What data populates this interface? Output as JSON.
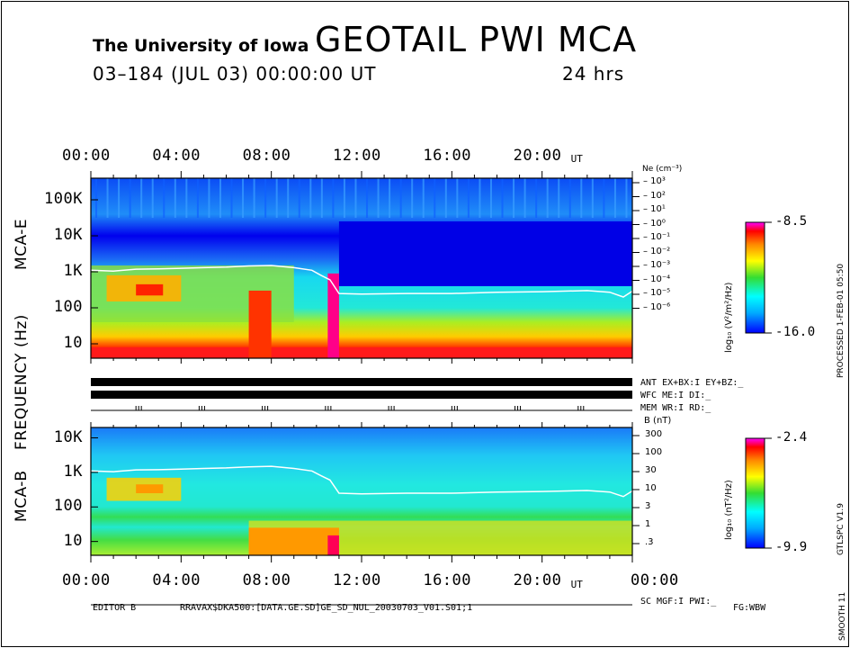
{
  "header": {
    "institution": "The University of Iowa",
    "title": "GEOTAIL  PWI  MCA",
    "date_line": "03–184 (JUL 03) 00:00:00 UT",
    "time_span": "24 hrs"
  },
  "side_labels": {
    "processed": "PROCESSED  1-FEB-01  05:50",
    "version": "GTLSPC  V1.9",
    "smooth": "SMOOTH 11",
    "frequency_axis": "FREQUENCY (Hz)",
    "mca_e": "MCA-E",
    "mca_b": "MCA-B"
  },
  "footer": {
    "editor": "EDITOR B",
    "file": "RRAVAX$DKA500:[DATA.GE.SD]GE_SD_NUL_20030703_V01.S01;1",
    "flag": "FG:WBW",
    "sc_status": "SC MGF:I   PWI:_"
  },
  "status_rows": {
    "ant": "ANT EX+BX:I  EY+BZ:_",
    "wfc": "WFC ME:I      DI:_",
    "mem": "MEM WR:I      RD:_"
  },
  "chart_data": [
    {
      "type": "heatmap",
      "panel": "MCA-E",
      "x_ticks": [
        "00:00",
        "04:00",
        "08:00",
        "12:00",
        "16:00",
        "20:00"
      ],
      "x_unit": "UT",
      "y_ticks": [
        "100K",
        "10K",
        "1K",
        "100",
        "10"
      ],
      "ylabel": "FREQUENCY (Hz)",
      "right_axis_label": "Ne (cm⁻³)",
      "right_ticks": [
        "10³",
        "10²",
        "10¹",
        "10⁰",
        "10⁻¹",
        "10⁻²",
        "10⁻³",
        "10⁻⁴",
        "10⁻⁵",
        "10⁻⁶"
      ],
      "colorbar": {
        "label": "log₁₀ (V²/m²/Hz)",
        "max": "-8.5",
        "min": "-16.0"
      },
      "overlay_line_hz": [
        [
          0,
          1100
        ],
        [
          1,
          1050
        ],
        [
          2,
          1180
        ],
        [
          3,
          1200
        ],
        [
          4,
          1250
        ],
        [
          5,
          1300
        ],
        [
          6,
          1350
        ],
        [
          7,
          1450
        ],
        [
          8,
          1500
        ],
        [
          9,
          1300
        ],
        [
          9.8,
          1100
        ],
        [
          10.2,
          800
        ],
        [
          10.6,
          600
        ],
        [
          11.0,
          250
        ],
        [
          12,
          240
        ],
        [
          14,
          250
        ],
        [
          16,
          250
        ],
        [
          18,
          270
        ],
        [
          20,
          280
        ],
        [
          22,
          300
        ],
        [
          23,
          270
        ],
        [
          23.6,
          200
        ],
        [
          24,
          290
        ]
      ]
    },
    {
      "type": "heatmap",
      "panel": "MCA-B",
      "x_ticks": [
        "00:00",
        "04:00",
        "08:00",
        "12:00",
        "16:00",
        "20:00",
        "00:00"
      ],
      "x_unit": "UT",
      "y_ticks": [
        "10K",
        "1K",
        "100",
        "10"
      ],
      "right_axis_label": "B (nT)",
      "right_ticks": [
        "300",
        "100",
        "30",
        "10",
        "3",
        "1",
        ".3"
      ],
      "colorbar": {
        "label": "log₁₀ (nT²/Hz)",
        "max": "-2.4",
        "min": "-9.9"
      },
      "overlay_line_hz": [
        [
          0,
          1100
        ],
        [
          1,
          1050
        ],
        [
          2,
          1180
        ],
        [
          3,
          1200
        ],
        [
          4,
          1250
        ],
        [
          5,
          1300
        ],
        [
          6,
          1350
        ],
        [
          7,
          1450
        ],
        [
          8,
          1500
        ],
        [
          9,
          1300
        ],
        [
          9.8,
          1100
        ],
        [
          10.2,
          800
        ],
        [
          10.6,
          600
        ],
        [
          11.0,
          250
        ],
        [
          12,
          240
        ],
        [
          14,
          250
        ],
        [
          16,
          250
        ],
        [
          18,
          270
        ],
        [
          20,
          280
        ],
        [
          22,
          300
        ],
        [
          23,
          270
        ],
        [
          23.6,
          200
        ],
        [
          24,
          290
        ]
      ]
    }
  ]
}
